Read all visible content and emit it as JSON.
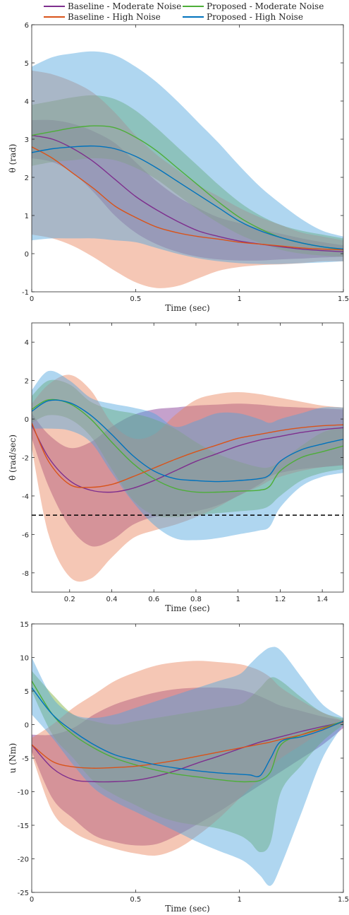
{
  "legend": {
    "items": [
      {
        "label": "Baseline - Moderate Noise",
        "color": "#7E2F8E"
      },
      {
        "label": "Proposed - Moderate Noise",
        "color": "#4DAE38"
      },
      {
        "label": "Baseline - High Noise",
        "color": "#D95319"
      },
      {
        "label": "Proposed - High Noise",
        "color": "#0072BD"
      }
    ]
  },
  "band_colors": {
    "bm": "#7E2F8E",
    "pm": "#77AC30",
    "bh": "#E8825A",
    "ph": "#4DA3DD"
  },
  "chart_data": [
    {
      "type": "area",
      "xlabel": "Time (sec)",
      "ylabel": "θ (rad)",
      "xlim": [
        0,
        1.5
      ],
      "ylim": [
        -1,
        6
      ],
      "xticks": [
        0,
        0.5,
        1,
        1.5
      ],
      "xticklabels": [
        "0",
        "0.5",
        "1",
        "1.5"
      ],
      "yticks": [
        -1,
        0,
        1,
        2,
        3,
        4,
        5,
        6
      ],
      "yticklabels": [
        "-1",
        "0",
        "1",
        "2",
        "3",
        "4",
        "5",
        "6"
      ],
      "grid": false,
      "x": [
        0,
        0.1,
        0.2,
        0.3,
        0.4,
        0.5,
        0.6,
        0.7,
        0.8,
        0.9,
        1.0,
        1.1,
        1.2,
        1.3,
        1.4,
        1.5
      ],
      "series": [
        {
          "key": "bm",
          "name": "Baseline - Moderate Noise",
          "mean": [
            3.1,
            3.0,
            2.75,
            2.4,
            1.95,
            1.5,
            1.15,
            0.85,
            0.6,
            0.45,
            0.33,
            0.25,
            0.18,
            0.12,
            0.08,
            0.05
          ],
          "upper": [
            3.5,
            3.5,
            3.4,
            3.2,
            2.9,
            2.4,
            1.9,
            1.5,
            1.2,
            0.95,
            0.8,
            0.65,
            0.52,
            0.4,
            0.3,
            0.22
          ],
          "lower": [
            2.5,
            2.4,
            2.1,
            1.6,
            1.0,
            0.55,
            0.25,
            0.05,
            -0.08,
            -0.15,
            -0.18,
            -0.18,
            -0.15,
            -0.13,
            -0.1,
            -0.08
          ]
        },
        {
          "key": "pm",
          "name": "Proposed - Moderate Noise",
          "mean": [
            3.1,
            3.2,
            3.3,
            3.35,
            3.3,
            3.05,
            2.7,
            2.25,
            1.8,
            1.35,
            0.95,
            0.65,
            0.42,
            0.28,
            0.18,
            0.1
          ],
          "upper": [
            3.9,
            4.0,
            4.1,
            4.15,
            4.05,
            3.75,
            3.3,
            2.8,
            2.3,
            1.8,
            1.35,
            1.0,
            0.75,
            0.6,
            0.5,
            0.4
          ],
          "lower": [
            2.3,
            2.4,
            2.45,
            2.5,
            2.45,
            2.25,
            1.95,
            1.55,
            1.15,
            0.8,
            0.5,
            0.28,
            0.1,
            0.0,
            -0.05,
            -0.08
          ]
        },
        {
          "key": "bh",
          "name": "Baseline - High Noise",
          "mean": [
            2.8,
            2.5,
            2.1,
            1.7,
            1.25,
            0.95,
            0.7,
            0.55,
            0.45,
            0.38,
            0.3,
            0.25,
            0.2,
            0.15,
            0.12,
            0.1
          ],
          "upper": [
            4.8,
            4.7,
            4.5,
            4.2,
            3.7,
            3.1,
            2.6,
            2.2,
            1.8,
            1.5,
            1.2,
            0.95,
            0.75,
            0.55,
            0.45,
            0.35
          ],
          "lower": [
            0.5,
            0.4,
            0.2,
            -0.1,
            -0.45,
            -0.75,
            -0.9,
            -0.85,
            -0.65,
            -0.45,
            -0.35,
            -0.3,
            -0.28,
            -0.25,
            -0.2,
            -0.2
          ]
        },
        {
          "key": "ph",
          "name": "Proposed - High Noise",
          "mean": [
            2.65,
            2.75,
            2.8,
            2.82,
            2.75,
            2.55,
            2.25,
            1.9,
            1.55,
            1.2,
            0.85,
            0.6,
            0.42,
            0.28,
            0.18,
            0.12
          ],
          "upper": [
            4.9,
            5.15,
            5.25,
            5.3,
            5.2,
            4.9,
            4.5,
            4.0,
            3.45,
            2.9,
            2.3,
            1.75,
            1.3,
            0.9,
            0.6,
            0.45
          ],
          "lower": [
            0.35,
            0.4,
            0.4,
            0.4,
            0.35,
            0.3,
            0.15,
            0.0,
            -0.12,
            -0.2,
            -0.25,
            -0.27,
            -0.27,
            -0.25,
            -0.23,
            -0.2
          ]
        }
      ]
    },
    {
      "type": "area",
      "xlabel": "Time (sec)",
      "ylabel": "θ̇ (rad/sec)",
      "xlim": [
        0.02,
        1.5
      ],
      "ylim": [
        -9,
        5
      ],
      "xticks": [
        0.2,
        0.4,
        0.6,
        0.8,
        1.0,
        1.2,
        1.4
      ],
      "xticklabels": [
        "0.2",
        "0.4",
        "0.6",
        "0.8",
        "1",
        "1.2",
        "1.4"
      ],
      "yticks": [
        -8,
        -6,
        -4,
        -2,
        0,
        2,
        4
      ],
      "yticklabels": [
        "-8",
        "-6",
        "-4",
        "-2",
        "0",
        "2",
        "4"
      ],
      "grid": false,
      "reference_line": {
        "y": -5,
        "style": "dashed",
        "color": "#000000"
      },
      "x": [
        0.02,
        0.1,
        0.2,
        0.3,
        0.4,
        0.5,
        0.6,
        0.7,
        0.8,
        0.9,
        1.0,
        1.1,
        1.15,
        1.2,
        1.3,
        1.4,
        1.5
      ],
      "series": [
        {
          "key": "bm",
          "name": "Baseline - Moderate Noise",
          "mean": [
            -0.3,
            -2.0,
            -3.2,
            -3.7,
            -3.8,
            -3.6,
            -3.2,
            -2.7,
            -2.2,
            -1.8,
            -1.4,
            -1.1,
            -1.0,
            -0.9,
            -0.7,
            -0.55,
            -0.45
          ],
          "upper": [
            0.3,
            -0.8,
            -1.5,
            -1.2,
            -0.4,
            0.2,
            0.5,
            0.6,
            0.7,
            0.75,
            0.8,
            0.75,
            0.7,
            0.65,
            0.6,
            0.55,
            0.5
          ],
          "lower": [
            -1.0,
            -3.5,
            -5.6,
            -6.6,
            -6.3,
            -5.5,
            -5.1,
            -5.0,
            -4.8,
            -4.5,
            -4.0,
            -3.4,
            -3.0,
            -2.8,
            -2.6,
            -2.5,
            -2.4
          ]
        },
        {
          "key": "pm",
          "name": "Proposed - Moderate Noise",
          "mean": [
            0.5,
            1.0,
            0.8,
            0.0,
            -1.2,
            -2.3,
            -3.1,
            -3.6,
            -3.8,
            -3.8,
            -3.75,
            -3.7,
            -3.5,
            -2.7,
            -2.0,
            -1.7,
            -1.4
          ],
          "upper": [
            1.2,
            2.0,
            1.8,
            0.9,
            0.5,
            0.3,
            0.0,
            -0.5,
            -1.2,
            -1.8,
            -2.2,
            -2.5,
            -2.5,
            -2.2,
            -1.4,
            -0.7,
            -0.4
          ],
          "lower": [
            -0.2,
            0.2,
            0.0,
            -0.9,
            -2.6,
            -4.2,
            -5.0,
            -5.1,
            -5.0,
            -4.9,
            -4.8,
            -4.7,
            -4.5,
            -4.0,
            -3.2,
            -2.8,
            -2.6
          ]
        },
        {
          "key": "bh",
          "name": "Baseline - High Noise",
          "mean": [
            -0.2,
            -2.2,
            -3.4,
            -3.55,
            -3.4,
            -3.0,
            -2.55,
            -2.1,
            -1.7,
            -1.35,
            -1.0,
            -0.8,
            -0.7,
            -0.6,
            -0.45,
            -0.35,
            -0.3
          ],
          "upper": [
            0.8,
            1.8,
            2.3,
            1.5,
            -0.2,
            -1.0,
            -0.8,
            0.2,
            1.0,
            1.3,
            1.4,
            1.3,
            1.2,
            1.1,
            0.9,
            0.7,
            0.6
          ],
          "lower": [
            -1.5,
            -6.0,
            -8.2,
            -8.3,
            -7.2,
            -6.2,
            -5.8,
            -5.5,
            -5.1,
            -4.6,
            -4.0,
            -3.5,
            -3.2,
            -3.0,
            -2.7,
            -2.5,
            -2.4
          ]
        },
        {
          "key": "ph",
          "name": "Proposed - High Noise",
          "mean": [
            0.4,
            0.95,
            0.85,
            0.2,
            -0.8,
            -1.9,
            -2.7,
            -3.1,
            -3.2,
            -3.25,
            -3.2,
            -3.1,
            -2.9,
            -2.2,
            -1.6,
            -1.3,
            -1.05
          ],
          "upper": [
            1.5,
            2.5,
            2.0,
            1.1,
            0.8,
            0.6,
            0.3,
            -0.4,
            -0.1,
            0.3,
            0.3,
            0.0,
            -0.2,
            0.0,
            0.3,
            0.6,
            0.6
          ],
          "lower": [
            -0.5,
            -0.5,
            -0.6,
            -1.2,
            -2.8,
            -4.3,
            -5.5,
            -6.2,
            -6.3,
            -6.2,
            -6.0,
            -5.8,
            -5.6,
            -4.6,
            -3.5,
            -3.0,
            -2.8
          ]
        }
      ]
    },
    {
      "type": "area",
      "xlabel": "Time (sec)",
      "ylabel": "u (Nm)",
      "xlim": [
        0,
        1.5
      ],
      "ylim": [
        -25,
        15
      ],
      "xticks": [
        0,
        0.5,
        1,
        1.5
      ],
      "xticklabels": [
        "0",
        "0.5",
        "1",
        "1.5"
      ],
      "yticks": [
        -25,
        -20,
        -15,
        -10,
        -5,
        0,
        5,
        10,
        15
      ],
      "yticklabels": [
        "-25",
        "-20",
        "-15",
        "-10",
        "-5",
        "0",
        "5",
        "10",
        "15"
      ],
      "grid": false,
      "x": [
        0,
        0.1,
        0.2,
        0.3,
        0.4,
        0.5,
        0.6,
        0.7,
        0.8,
        0.9,
        1.0,
        1.05,
        1.1,
        1.15,
        1.2,
        1.3,
        1.4,
        1.5
      ],
      "series": [
        {
          "key": "bm",
          "name": "Baseline - Moderate Noise",
          "mean": [
            -3.0,
            -6.5,
            -8.2,
            -8.5,
            -8.5,
            -8.3,
            -7.7,
            -6.8,
            -5.7,
            -4.7,
            -3.6,
            -3.1,
            -2.6,
            -2.2,
            -1.8,
            -1.0,
            -0.3,
            0.4
          ],
          "upper": [
            -1.5,
            -1.5,
            -0.5,
            1.5,
            3.0,
            4.0,
            4.8,
            5.3,
            5.5,
            5.5,
            5.2,
            4.8,
            4.2,
            3.5,
            2.8,
            2.0,
            1.2,
            0.6
          ],
          "lower": [
            -4.0,
            -11.0,
            -14.0,
            -16.5,
            -17.5,
            -18.0,
            -17.8,
            -16.5,
            -14.8,
            -13.0,
            -11.0,
            -10.0,
            -9.0,
            -8.0,
            -7.0,
            -5.0,
            -3.0,
            -0.5
          ]
        },
        {
          "key": "pm",
          "name": "Proposed - Moderate Noise",
          "mean": [
            6.5,
            1.5,
            -1.5,
            -3.5,
            -5.0,
            -6.0,
            -6.8,
            -7.4,
            -7.8,
            -8.2,
            -8.5,
            -8.5,
            -8.3,
            -7.0,
            -3.0,
            -1.5,
            -0.5,
            0.5
          ],
          "upper": [
            8.0,
            4.5,
            1.5,
            0.5,
            0.0,
            0.5,
            1.0,
            1.5,
            2.0,
            2.5,
            3.0,
            4.0,
            5.5,
            7.0,
            6.5,
            4.0,
            1.8,
            0.9
          ],
          "lower": [
            5.0,
            -1.5,
            -5.0,
            -8.5,
            -10.5,
            -12.0,
            -13.5,
            -14.5,
            -15.0,
            -15.5,
            -16.5,
            -17.5,
            -19.0,
            -17.5,
            -10.0,
            -6.0,
            -2.5,
            0.0
          ]
        },
        {
          "key": "bh",
          "name": "Baseline - High Noise",
          "mean": [
            -3.0,
            -5.5,
            -6.3,
            -6.5,
            -6.4,
            -6.2,
            -5.8,
            -5.3,
            -4.7,
            -4.1,
            -3.5,
            -3.2,
            -2.9,
            -2.6,
            -2.2,
            -1.5,
            -0.6,
            0.4
          ],
          "upper": [
            -2.0,
            0.0,
            2.5,
            4.5,
            6.5,
            7.8,
            8.8,
            9.3,
            9.5,
            9.3,
            9.0,
            8.6,
            8.0,
            7.0,
            5.5,
            3.5,
            1.8,
            0.6
          ],
          "lower": [
            -4.5,
            -13.0,
            -16.0,
            -17.5,
            -18.5,
            -19.2,
            -19.5,
            -18.5,
            -16.5,
            -14.0,
            -11.0,
            -9.5,
            -8.0,
            -6.5,
            -5.0,
            -3.0,
            -1.0,
            0.2
          ]
        },
        {
          "key": "ph",
          "name": "Proposed - High Noise",
          "mean": [
            5.5,
            1.5,
            -1.0,
            -3.0,
            -4.5,
            -5.3,
            -6.0,
            -6.5,
            -6.9,
            -7.2,
            -7.4,
            -7.5,
            -7.6,
            -5.0,
            -2.5,
            -1.8,
            -0.8,
            0.5
          ],
          "upper": [
            10.0,
            4.0,
            1.5,
            1.0,
            1.5,
            2.5,
            3.5,
            4.5,
            5.5,
            6.5,
            7.5,
            9.0,
            10.5,
            11.5,
            11.0,
            7.0,
            3.0,
            1.0
          ],
          "lower": [
            1.5,
            -2.0,
            -6.0,
            -9.5,
            -11.5,
            -13.0,
            -14.5,
            -16.0,
            -17.5,
            -18.8,
            -20.0,
            -21.0,
            -22.5,
            -24.0,
            -21.0,
            -13.0,
            -5.0,
            0.0
          ]
        }
      ]
    }
  ]
}
